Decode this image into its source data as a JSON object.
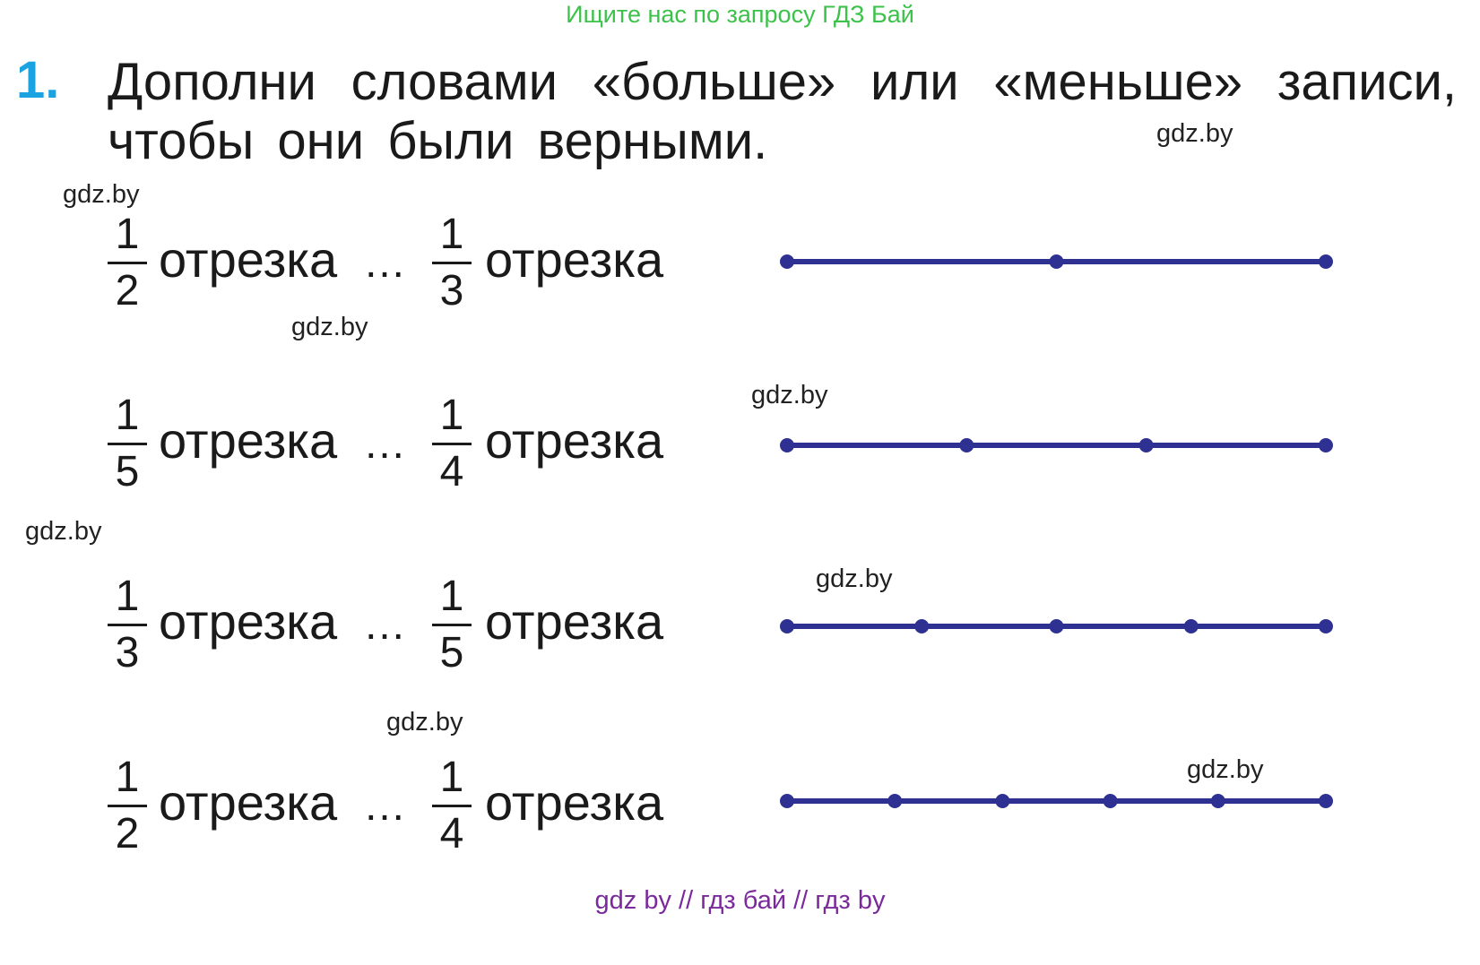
{
  "banner": "Ищите нас по запросу ГДЗ Бай",
  "task": {
    "number": "1.",
    "line1": "Дополни словами «больше» или «меньше» записи,",
    "line2": "чтобы они были верными."
  },
  "rows": [
    {
      "left": {
        "num": "1",
        "den": "2"
      },
      "right": {
        "num": "1",
        "den": "3"
      },
      "word": "отрезка",
      "dots": "…",
      "parts": 2
    },
    {
      "left": {
        "num": "1",
        "den": "5"
      },
      "right": {
        "num": "1",
        "den": "4"
      },
      "word": "отрезка",
      "dots": "…",
      "parts": 3
    },
    {
      "left": {
        "num": "1",
        "den": "3"
      },
      "right": {
        "num": "1",
        "den": "5"
      },
      "word": "отрезка",
      "dots": "…",
      "parts": 4
    },
    {
      "left": {
        "num": "1",
        "den": "2"
      },
      "right": {
        "num": "1",
        "den": "4"
      },
      "word": "отрезка",
      "dots": "…",
      "parts": 5
    }
  ],
  "watermarks": [
    "gdz.by",
    "gdz.by",
    "gdz.by",
    "gdz.by",
    "gdz.by",
    "gdz.by",
    "gdz.by",
    "gdz.by"
  ],
  "footer": "gdz by  //  гдз бай  //  гдз by",
  "colors": {
    "segment": "#2e3191",
    "number": "#1aa3e0",
    "banner": "#3cc24a",
    "footer": "#7a2a9a"
  }
}
